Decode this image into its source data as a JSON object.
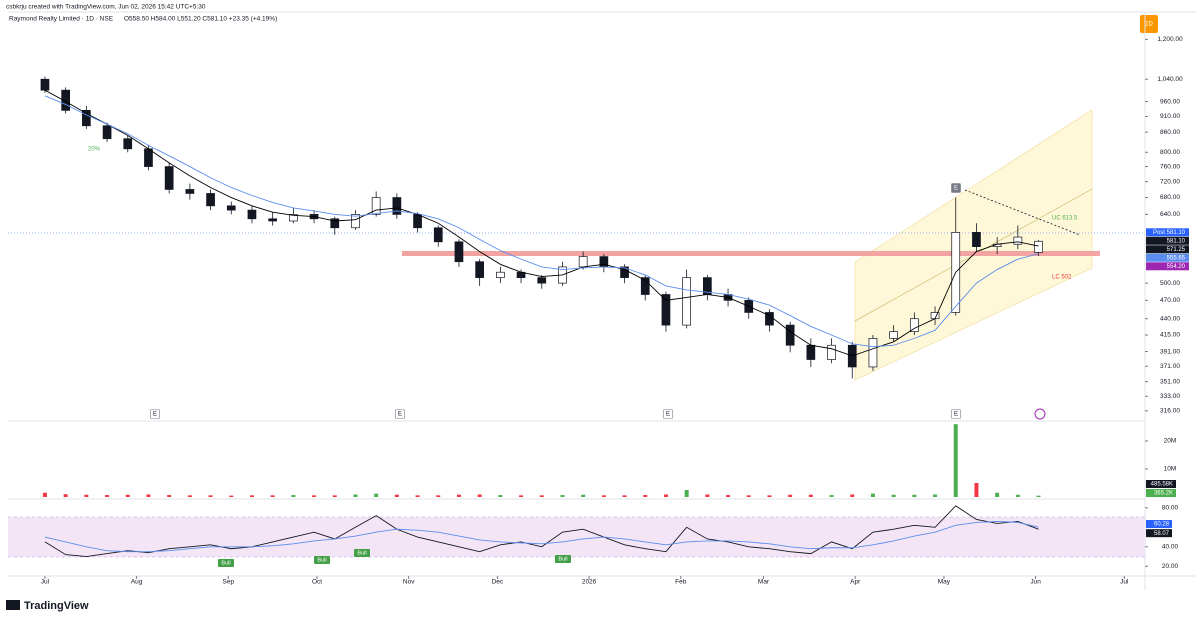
{
  "header": {
    "credit": "csbkrju created with TradingView.com, Jun 02, 2026 15:42 UTC+5:30",
    "symbol": "Raymond Realty Limited · 1D · NSE",
    "ohlc": "O558.50 H584.00 L551.20 C581.10 +23.35 (+4.19%)",
    "interval_badge": "1D"
  },
  "brand": "TradingView",
  "chart_data": [
    {
      "type": "candlestick",
      "log_scale": true,
      "xlim": [
        -12.5,
        372
      ],
      "xticks": [
        {
          "value": 0,
          "label": "Jul"
        },
        {
          "value": 31,
          "label": "Aug"
        },
        {
          "value": 62,
          "label": "Sep"
        },
        {
          "value": 92,
          "label": "Oct"
        },
        {
          "value": 123,
          "label": "Nov"
        },
        {
          "value": 153,
          "label": "Dec"
        },
        {
          "value": 184,
          "label": "2026"
        },
        {
          "value": 215,
          "label": "Feb"
        },
        {
          "value": 243,
          "label": "Mar"
        },
        {
          "value": 274,
          "label": "Apr"
        },
        {
          "value": 304,
          "label": "May"
        },
        {
          "value": 335,
          "label": "Jun"
        },
        {
          "value": 365,
          "label": "Jul"
        }
      ],
      "ylim": [
        308,
        1310
      ],
      "yticks": [
        {
          "value": 1200,
          "label": "1,200.00"
        },
        {
          "value": 1040,
          "label": "1,040.00"
        },
        {
          "value": 960,
          "label": "960.00"
        },
        {
          "value": 910,
          "label": "910.00"
        },
        {
          "value": 860,
          "label": "860.00"
        },
        {
          "value": 800,
          "label": "800.00"
        },
        {
          "value": 760,
          "label": "760.00"
        },
        {
          "value": 720,
          "label": "720.00"
        },
        {
          "value": 680,
          "label": "680.00"
        },
        {
          "value": 640,
          "label": "640.00"
        },
        {
          "value": 500,
          "label": "500.00"
        },
        {
          "value": 470,
          "label": "470.00"
        },
        {
          "value": 440,
          "label": "440.00"
        },
        {
          "value": 415,
          "label": "415.00"
        },
        {
          "value": 391,
          "label": "391.00"
        },
        {
          "value": 371,
          "label": "371.00"
        },
        {
          "value": 351,
          "label": "351.00"
        },
        {
          "value": 333,
          "label": "333.00"
        },
        {
          "value": 316,
          "label": "316.00"
        }
      ],
      "x": [
        0,
        7,
        14,
        21,
        28,
        35,
        42,
        49,
        56,
        63,
        70,
        77,
        84,
        91,
        98,
        105,
        112,
        119,
        126,
        133,
        140,
        147,
        154,
        161,
        168,
        175,
        182,
        189,
        196,
        203,
        210,
        217,
        224,
        231,
        238,
        245,
        252,
        259,
        266,
        273,
        280,
        287,
        294,
        301,
        308,
        315,
        322,
        329,
        336
      ],
      "open": [
        1040,
        1000,
        930,
        880,
        840,
        810,
        760,
        700,
        690,
        660,
        650,
        630,
        625,
        640,
        630,
        610,
        640,
        680,
        640,
        610,
        580,
        540,
        510,
        520,
        510,
        500,
        530,
        550,
        530,
        510,
        480,
        430,
        510,
        480,
        470,
        450,
        430,
        400,
        380,
        400,
        370,
        410,
        420,
        440,
        450,
        600,
        570,
        575,
        558.5
      ],
      "high": [
        1050,
        1010,
        945,
        890,
        850,
        820,
        770,
        715,
        700,
        670,
        660,
        645,
        655,
        650,
        635,
        650,
        695,
        690,
        645,
        615,
        585,
        545,
        530,
        525,
        515,
        540,
        560,
        555,
        535,
        515,
        485,
        525,
        515,
        490,
        475,
        455,
        435,
        410,
        410,
        405,
        415,
        430,
        450,
        460,
        680,
        620,
        590,
        615,
        584
      ],
      "low": [
        990,
        920,
        870,
        830,
        800,
        750,
        690,
        675,
        650,
        640,
        620,
        615,
        620,
        620,
        595,
        605,
        635,
        630,
        600,
        570,
        530,
        495,
        500,
        500,
        490,
        495,
        525,
        520,
        500,
        470,
        420,
        425,
        470,
        460,
        440,
        420,
        390,
        370,
        375,
        355,
        365,
        405,
        415,
        430,
        445,
        560,
        555,
        565,
        551.2
      ],
      "close": [
        1000,
        930,
        880,
        840,
        810,
        760,
        700,
        690,
        660,
        650,
        630,
        625,
        640,
        630,
        610,
        640,
        680,
        640,
        610,
        580,
        540,
        510,
        520,
        510,
        500,
        530,
        550,
        530,
        510,
        480,
        430,
        510,
        480,
        470,
        450,
        430,
        400,
        380,
        400,
        370,
        410,
        420,
        440,
        450,
        600,
        570,
        575,
        590,
        581.1
      ],
      "series": [
        {
          "color": "#000000",
          "values": [
            1000,
            960,
            920,
            885,
            850,
            810,
            770,
            735,
            705,
            680,
            660,
            645,
            638,
            635,
            625,
            628,
            650,
            655,
            640,
            620,
            590,
            560,
            535,
            520,
            512,
            515,
            530,
            535,
            525,
            505,
            470,
            475,
            480,
            475,
            460,
            445,
            420,
            400,
            395,
            385,
            395,
            405,
            425,
            440,
            520,
            560,
            575,
            580,
            571.25
          ]
        },
        {
          "color": "#5b8def",
          "values": [
            980,
            950,
            915,
            885,
            855,
            820,
            790,
            760,
            730,
            705,
            685,
            668,
            655,
            648,
            640,
            636,
            642,
            648,
            642,
            630,
            610,
            585,
            562,
            545,
            530,
            525,
            528,
            530,
            528,
            515,
            495,
            488,
            484,
            480,
            472,
            462,
            445,
            428,
            415,
            402,
            398,
            400,
            410,
            422,
            460,
            500,
            525,
            545,
            555.65
          ]
        }
      ],
      "price_tags": [
        {
          "value": 581.1,
          "label": "Post 581.10",
          "color": "#2962ff"
        },
        {
          "value": 581.1,
          "label": "581.10",
          "color": "#131722"
        },
        {
          "value": 571.25,
          "label": "571.25",
          "color": "#131722"
        },
        {
          "value": 555.65,
          "label": "555.65",
          "color": "#5b8def"
        },
        {
          "value": 554.2,
          "label": "554.20",
          "color": "#9c27b0"
        }
      ],
      "annotations": [
        "20%",
        "UC 613.5",
        "LC 502",
        "E",
        "E",
        "E",
        "E",
        "E"
      ]
    },
    {
      "type": "bar",
      "ylim": [
        0,
        25.7
      ],
      "yticks": [
        {
          "value": 20,
          "label": "20M"
        },
        {
          "value": 10,
          "label": "10M"
        }
      ],
      "values": [
        1.5,
        1,
        0.8,
        0.7,
        0.8,
        0.9,
        0.7,
        0.6,
        0.6,
        0.5,
        0.6,
        0.6,
        0.7,
        0.6,
        0.6,
        0.9,
        1.2,
        0.8,
        0.6,
        0.6,
        0.8,
        0.9,
        0.7,
        0.6,
        0.6,
        0.7,
        0.8,
        0.6,
        0.6,
        0.7,
        0.9,
        2.5,
        0.9,
        0.7,
        0.6,
        0.6,
        0.8,
        0.8,
        0.7,
        0.9,
        1.2,
        0.8,
        0.8,
        0.9,
        26,
        5,
        1.5,
        0.8,
        0.48558
      ],
      "value_labels": [
        {
          "value": 0.48558,
          "label": "485.58K",
          "color": "#131722"
        },
        {
          "value": 0.3652,
          "label": "365.2K",
          "color": "#4caf50"
        }
      ]
    },
    {
      "type": "line",
      "ylim": [
        9,
        88
      ],
      "yticks": [
        {
          "value": 80,
          "label": "80.00"
        },
        {
          "value": 40,
          "label": "40.00"
        },
        {
          "value": 20,
          "label": "20.00"
        }
      ],
      "series": [
        {
          "color": "#131722",
          "values": [
            45,
            32,
            30,
            33,
            36,
            34,
            38,
            40,
            42,
            38,
            40,
            45,
            50,
            55,
            48,
            60,
            72,
            58,
            50,
            45,
            40,
            35,
            42,
            45,
            40,
            55,
            58,
            50,
            42,
            38,
            35,
            60,
            48,
            45,
            40,
            38,
            35,
            33,
            45,
            38,
            55,
            58,
            62,
            60,
            82,
            68,
            64,
            66,
            58.07
          ]
        },
        {
          "color": "#5b8def",
          "values": [
            50,
            45,
            40,
            36,
            35,
            35,
            36,
            38,
            40,
            40,
            40,
            41,
            43,
            46,
            48,
            51,
            55,
            58,
            57,
            55,
            51,
            47,
            45,
            44,
            43,
            45,
            48,
            50,
            48,
            45,
            42,
            45,
            46,
            46,
            45,
            43,
            40,
            38,
            39,
            39,
            42,
            46,
            51,
            55,
            62,
            65,
            66,
            65,
            60.28
          ]
        }
      ],
      "value_labels": [
        {
          "value": 60.28,
          "label": "60.28",
          "color": "#2962ff"
        },
        {
          "value": 58.07,
          "label": "58.07",
          "color": "#131722"
        }
      ],
      "annotations": [
        "Bull",
        "Bull",
        "Bull",
        "Bull"
      ]
    }
  ]
}
